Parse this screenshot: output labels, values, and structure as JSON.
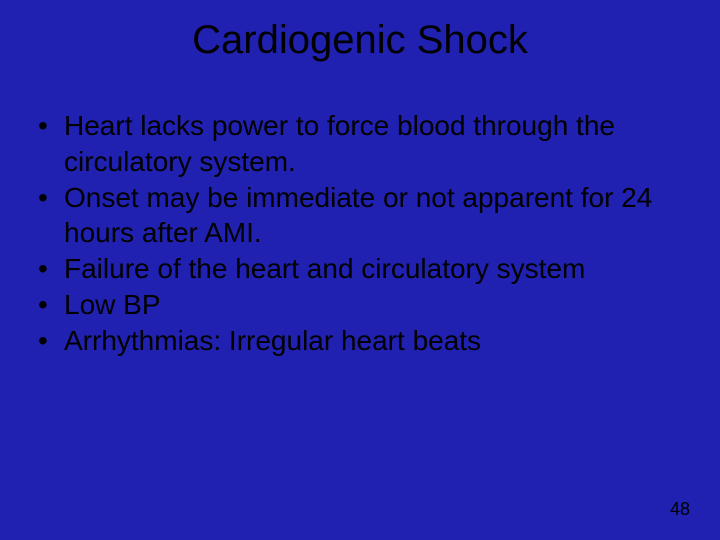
{
  "slide": {
    "background_color": "#2021b1",
    "text_color": "#000000",
    "title": "Cardiogenic Shock",
    "title_fontsize": 40,
    "body_fontsize": 28,
    "bullets": [
      " Heart lacks power to force blood through the circulatory system.",
      " Onset may be immediate or not apparent for 24 hours after AMI.",
      " Failure of the heart and circulatory system",
      " Low BP",
      " Arrhythmias: Irregular heart beats"
    ],
    "page_number": "48",
    "page_number_fontsize": 18
  }
}
